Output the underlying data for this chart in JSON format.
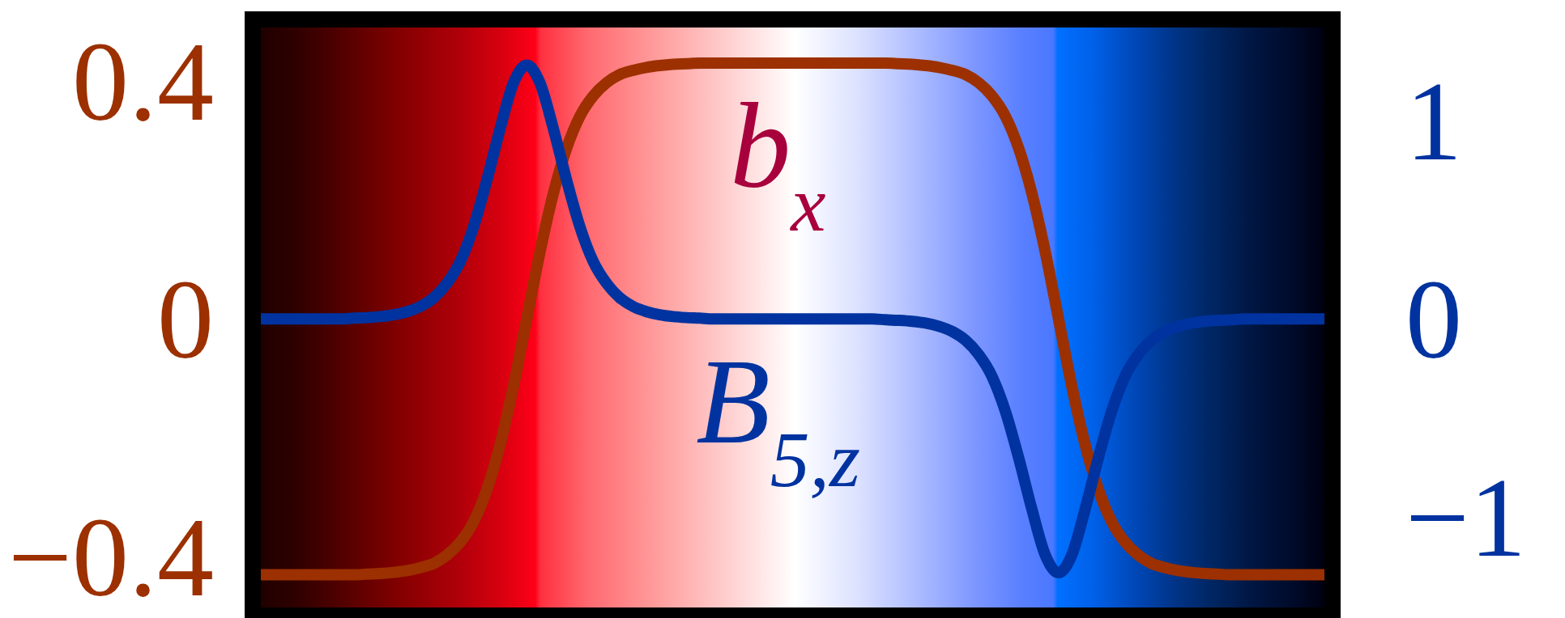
{
  "chart_data": {
    "type": "line",
    "categories": [
      null,
      null,
      null,
      null,
      null,
      null,
      null,
      null,
      null,
      null,
      null,
      null,
      null,
      null,
      null,
      null,
      null,
      null,
      null,
      null,
      null,
      null,
      null,
      null,
      null,
      null,
      null,
      null,
      null,
      null,
      null,
      null,
      null,
      null,
      null,
      null,
      null,
      null,
      null,
      null,
      null,
      null,
      null,
      null,
      null,
      null,
      null,
      null,
      null,
      null,
      null,
      null,
      null,
      null,
      null,
      null,
      null,
      null,
      null,
      null,
      null,
      null,
      null,
      null,
      null,
      null,
      null,
      null,
      null,
      null,
      null,
      null,
      null,
      null,
      null,
      null,
      null,
      null,
      null,
      null,
      null
    ],
    "series": [
      {
        "name": "b$_{x}$",
        "color": "#9c3000",
        "values": [
          -0.43,
          -0.43,
          -0.43,
          -0.43,
          -0.43,
          -0.43,
          -0.43,
          -0.43,
          -0.429,
          -0.428,
          -0.426,
          -0.423,
          -0.418,
          -0.411,
          -0.397,
          -0.375,
          -0.341,
          -0.287,
          -0.211,
          -0.113,
          0,
          0.113,
          0.211,
          0.287,
          0.341,
          0.375,
          0.397,
          0.411,
          0.418,
          0.423,
          0.426,
          0.428,
          0.429,
          0.43,
          0.43,
          0.43,
          0.43,
          0.43,
          0.43,
          0.43,
          0.43,
          0.43,
          0.43,
          0.43,
          0.43,
          0.43,
          0.43,
          0.43,
          0.429,
          0.428,
          0.426,
          0.423,
          0.418,
          0.411,
          0.397,
          0.375,
          0.341,
          0.287,
          0.211,
          0.113,
          0,
          -0.113,
          -0.211,
          -0.287,
          -0.341,
          -0.375,
          -0.397,
          -0.411,
          -0.418,
          -0.423,
          -0.426,
          -0.428,
          -0.429,
          -0.43,
          -0.43,
          -0.43,
          -0.43,
          -0.43,
          -0.43,
          -0.43,
          -0.43
        ]
      },
      {
        "name": "B$_{5,z}$",
        "color": "#0033a0",
        "axis": "y2",
        "values": [
          0,
          0,
          0,
          0,
          0,
          0,
          0,
          0.004,
          0.007,
          0.012,
          0.021,
          0.037,
          0.063,
          0.107,
          0.18,
          0.29,
          0.465,
          0.7,
          0.96,
          1.19,
          1.28,
          1.19,
          0.96,
          0.7,
          0.465,
          0.29,
          0.18,
          0.107,
          0.063,
          0.037,
          0.021,
          0.012,
          0.007,
          0.004,
          0,
          0,
          0,
          0,
          0,
          0,
          0,
          0,
          0,
          0,
          0,
          0,
          0,
          -0.004,
          -0.007,
          -0.012,
          -0.021,
          -0.037,
          -0.063,
          -0.107,
          -0.18,
          -0.29,
          -0.465,
          -0.7,
          -0.96,
          -1.19,
          -1.28,
          -1.19,
          -0.96,
          -0.7,
          -0.465,
          -0.29,
          -0.18,
          -0.107,
          -0.063,
          -0.037,
          -0.021,
          -0.012,
          -0.007,
          -0.004,
          0,
          0,
          0,
          0,
          0,
          0,
          0
        ]
      }
    ],
    "ylim": [
      -0.485,
      0.49
    ],
    "yticks": [
      {
        "value": -0.4,
        "label": "−0.4"
      },
      0,
      0.4
    ],
    "y2lim": [
      -1.455,
      1.47
    ],
    "y2ticks": [
      {
        "value": -1,
        "label": "−1"
      },
      0,
      1
    ]
  }
}
